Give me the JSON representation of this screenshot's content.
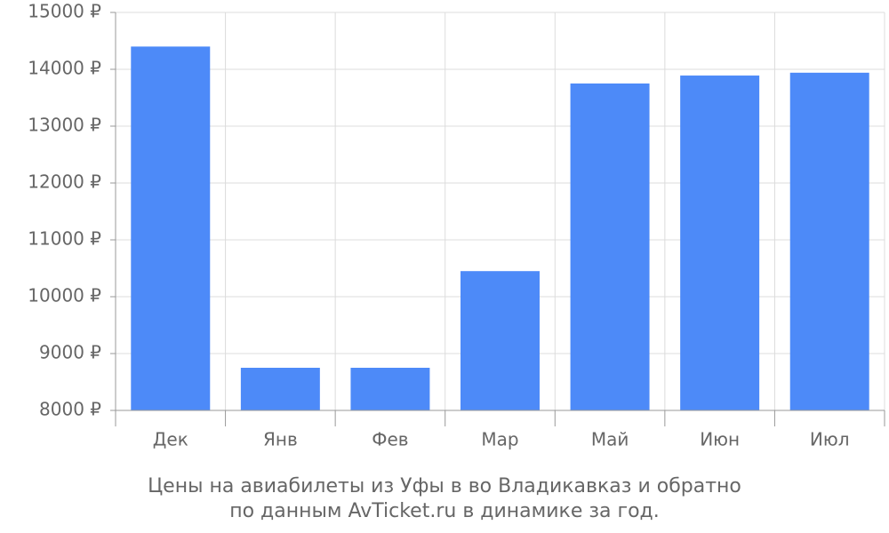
{
  "chart_data": {
    "type": "bar",
    "title": [
      "Цены на авиабилеты из Уфы в во Владикавказ и обратно",
      "по данным AvTicket.ru в динамике за год."
    ],
    "categories": [
      "Дек",
      "Янв",
      "Фев",
      "Мар",
      "Май",
      "Июн",
      "Июл"
    ],
    "values": [
      14400,
      8750,
      8750,
      10450,
      13750,
      13890,
      13940
    ],
    "color": "#4d8af8",
    "ylim": [
      8000,
      15000
    ],
    "yticks": [
      {
        "value": 8000,
        "label": "8000 ₽"
      },
      {
        "value": 9000,
        "label": "9000 ₽"
      },
      {
        "value": 10000,
        "label": "10000 ₽"
      },
      {
        "value": 11000,
        "label": "11000 ₽"
      },
      {
        "value": 12000,
        "label": "12000 ₽"
      },
      {
        "value": 13000,
        "label": "13000 ₽"
      },
      {
        "value": 14000,
        "label": "14000 ₽"
      },
      {
        "value": 15000,
        "label": "15000 ₽"
      }
    ],
    "grid": true
  }
}
